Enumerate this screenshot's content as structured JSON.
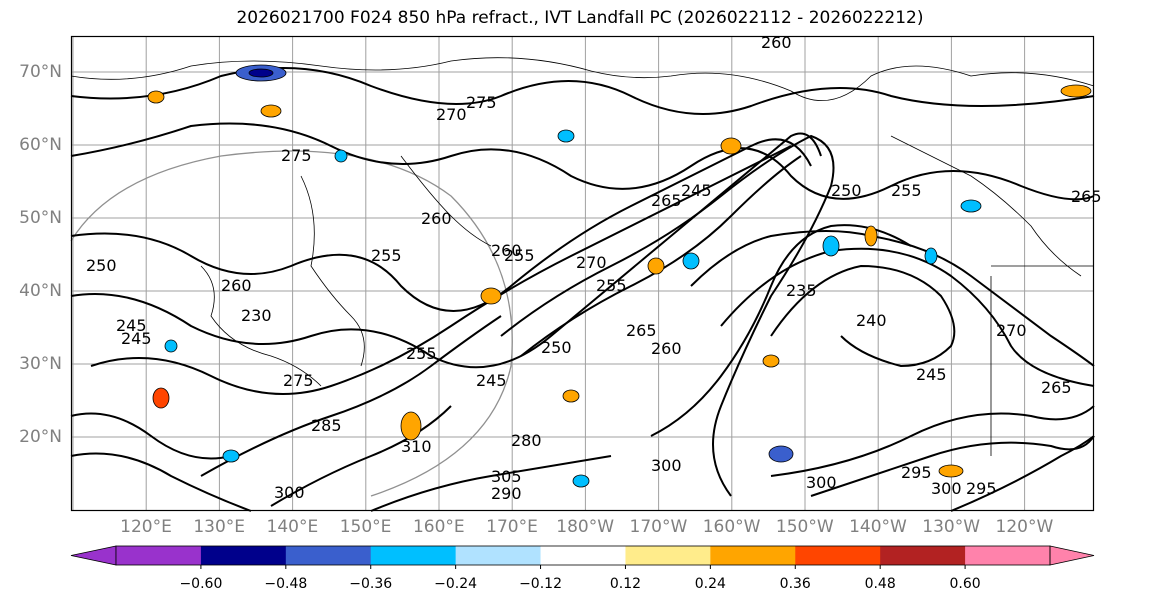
{
  "title": "2026021700 F024 850 hPa refract., IVT Landfall PC (2026022112 - 2026022212)",
  "lat_labels": [
    "70°N",
    "60°N",
    "50°N",
    "40°N",
    "30°N",
    "20°N"
  ],
  "lon_labels": [
    "120°E",
    "130°E",
    "140°E",
    "150°E",
    "160°E",
    "170°E",
    "180°W",
    "170°W",
    "160°W",
    "150°W",
    "140°W",
    "130°W",
    "120°W"
  ],
  "contour_labels": [
    "260",
    "275",
    "270",
    "275",
    "265",
    "260",
    "260",
    "255",
    "255",
    "250",
    "260",
    "245",
    "230",
    "255",
    "270",
    "265",
    "245",
    "255",
    "250",
    "265",
    "260",
    "235",
    "240",
    "270",
    "245",
    "275",
    "265",
    "245",
    "280",
    "300",
    "295",
    "305",
    "290",
    "300",
    "310",
    "285",
    "300",
    "295",
    "300",
    "245",
    "250",
    "255"
  ],
  "colorbar": {
    "ticks": [
      "−0.60",
      "−0.48",
      "−0.36",
      "−0.24",
      "−0.12",
      "0.12",
      "0.24",
      "0.36",
      "0.48",
      "0.60"
    ],
    "colors": [
      "#9932cc",
      "#00008b",
      "#3a5fcd",
      "#00bfff",
      "#b0e2ff",
      "#ffffff",
      "#ffec8b",
      "#ffa500",
      "#ff4500",
      "#b22222",
      "#ff82ab"
    ]
  }
}
